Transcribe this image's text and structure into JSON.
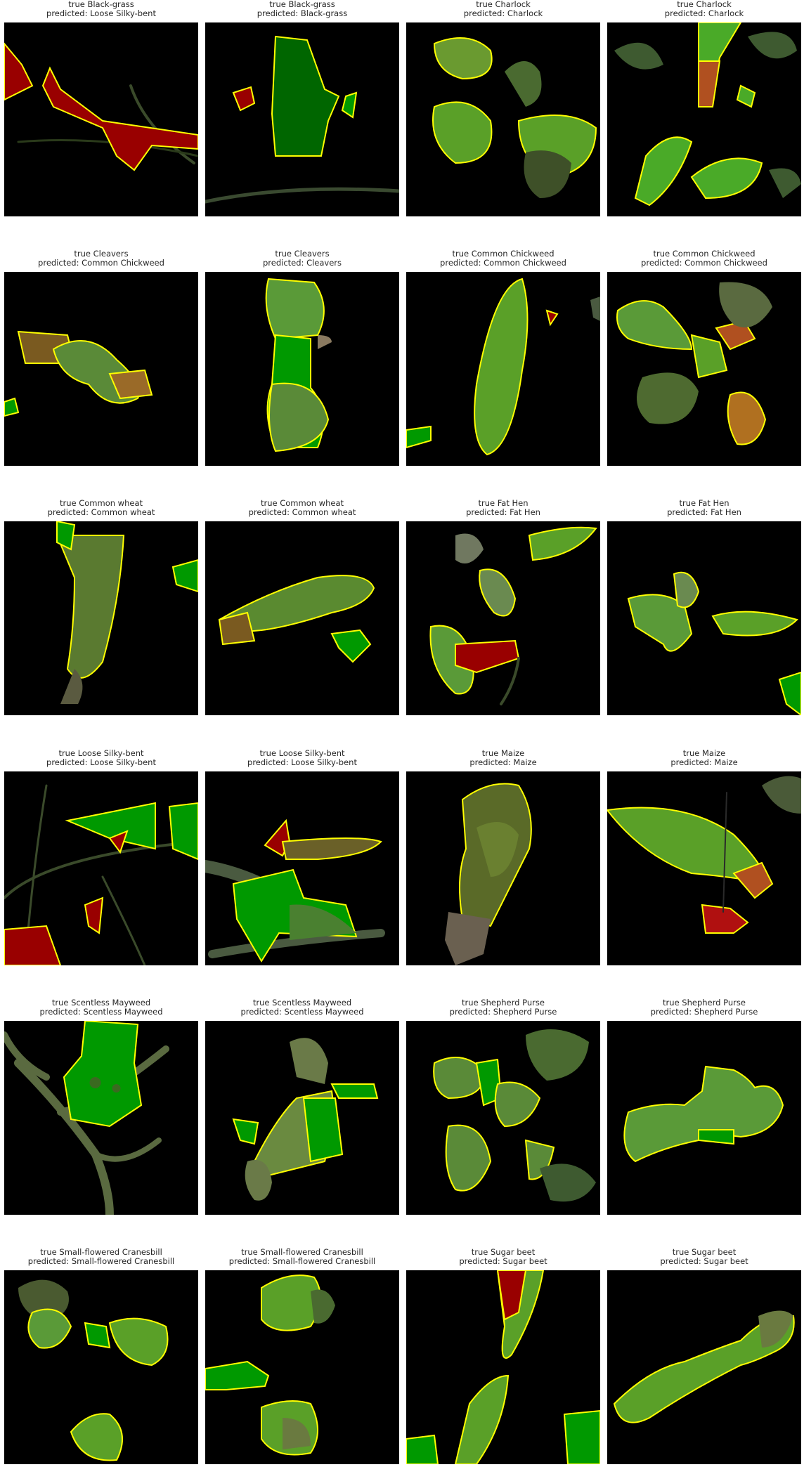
{
  "figure": {
    "prefix_true": "true",
    "prefix_pred": "predicted:",
    "colors": {
      "background": "#000000",
      "highlight_green": "#009900",
      "highlight_red": "#990000",
      "contour": "#ffff00"
    },
    "panels": [
      {
        "true_label": "Black-grass",
        "predicted": "Loose Silky-bent"
      },
      {
        "true_label": "Black-grass",
        "predicted": "Black-grass"
      },
      {
        "true_label": "Charlock",
        "predicted": "Charlock"
      },
      {
        "true_label": "Charlock",
        "predicted": "Charlock"
      },
      {
        "true_label": "Cleavers",
        "predicted": "Common Chickweed"
      },
      {
        "true_label": "Cleavers",
        "predicted": "Cleavers"
      },
      {
        "true_label": "Common Chickweed",
        "predicted": "Common Chickweed"
      },
      {
        "true_label": "Common Chickweed",
        "predicted": "Common Chickweed"
      },
      {
        "true_label": "Common wheat",
        "predicted": "Common wheat"
      },
      {
        "true_label": "Common wheat",
        "predicted": "Common wheat"
      },
      {
        "true_label": "Fat Hen",
        "predicted": "Fat Hen"
      },
      {
        "true_label": "Fat Hen",
        "predicted": "Fat Hen"
      },
      {
        "true_label": "Loose Silky-bent",
        "predicted": "Loose Silky-bent"
      },
      {
        "true_label": "Loose Silky-bent",
        "predicted": "Loose Silky-bent"
      },
      {
        "true_label": "Maize",
        "predicted": "Maize"
      },
      {
        "true_label": "Maize",
        "predicted": "Maize"
      },
      {
        "true_label": "Scentless Mayweed",
        "predicted": "Scentless Mayweed"
      },
      {
        "true_label": "Scentless Mayweed",
        "predicted": "Scentless Mayweed"
      },
      {
        "true_label": "Shepherd Purse",
        "predicted": "Shepherd Purse"
      },
      {
        "true_label": "Shepherd Purse",
        "predicted": "Shepherd Purse"
      },
      {
        "true_label": "Small-flowered Cranesbill",
        "predicted": "Small-flowered Cranesbill"
      },
      {
        "true_label": "Small-flowered Cranesbill",
        "predicted": "Small-flowered Cranesbill"
      },
      {
        "true_label": "Sugar beet",
        "predicted": "Sugar beet"
      },
      {
        "true_label": "Sugar beet",
        "predicted": "Sugar beet"
      }
    ]
  }
}
